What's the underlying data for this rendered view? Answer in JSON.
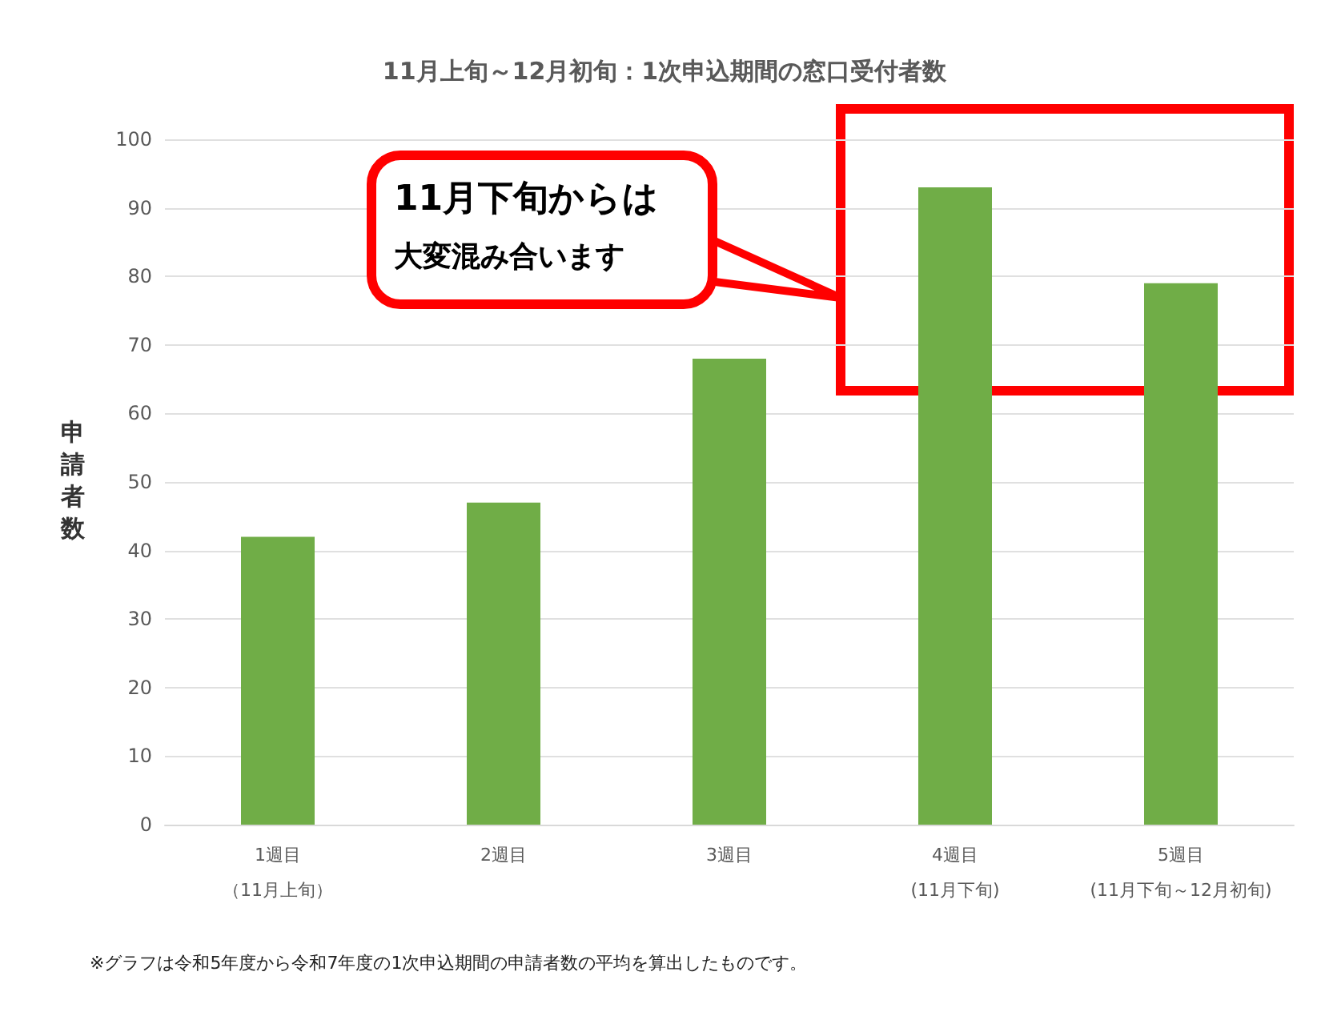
{
  "chart_data": {
    "type": "bar",
    "title": "11月上旬～12月初旬：1次申込期間の窓口受付者数",
    "ylabel": "申請者数",
    "categories": [
      "1週目（11月上旬）",
      "2週目",
      "3週目",
      "4週目(11月下旬)",
      "5週目(11月下旬～12月初旬)"
    ],
    "values": [
      42,
      47,
      68,
      93,
      79
    ],
    "color": "#70ad47",
    "ylim": [
      0,
      100
    ],
    "yticks": [
      0,
      10,
      20,
      30,
      40,
      50,
      60,
      70,
      80,
      90,
      100
    ],
    "grid": "y",
    "annotations": [
      "11月下旬からは大変混み合います",
      "※グラフは令和5年度から令和7年度の1次申込期間の申請者数の平均を算出したものです。"
    ]
  }
}
